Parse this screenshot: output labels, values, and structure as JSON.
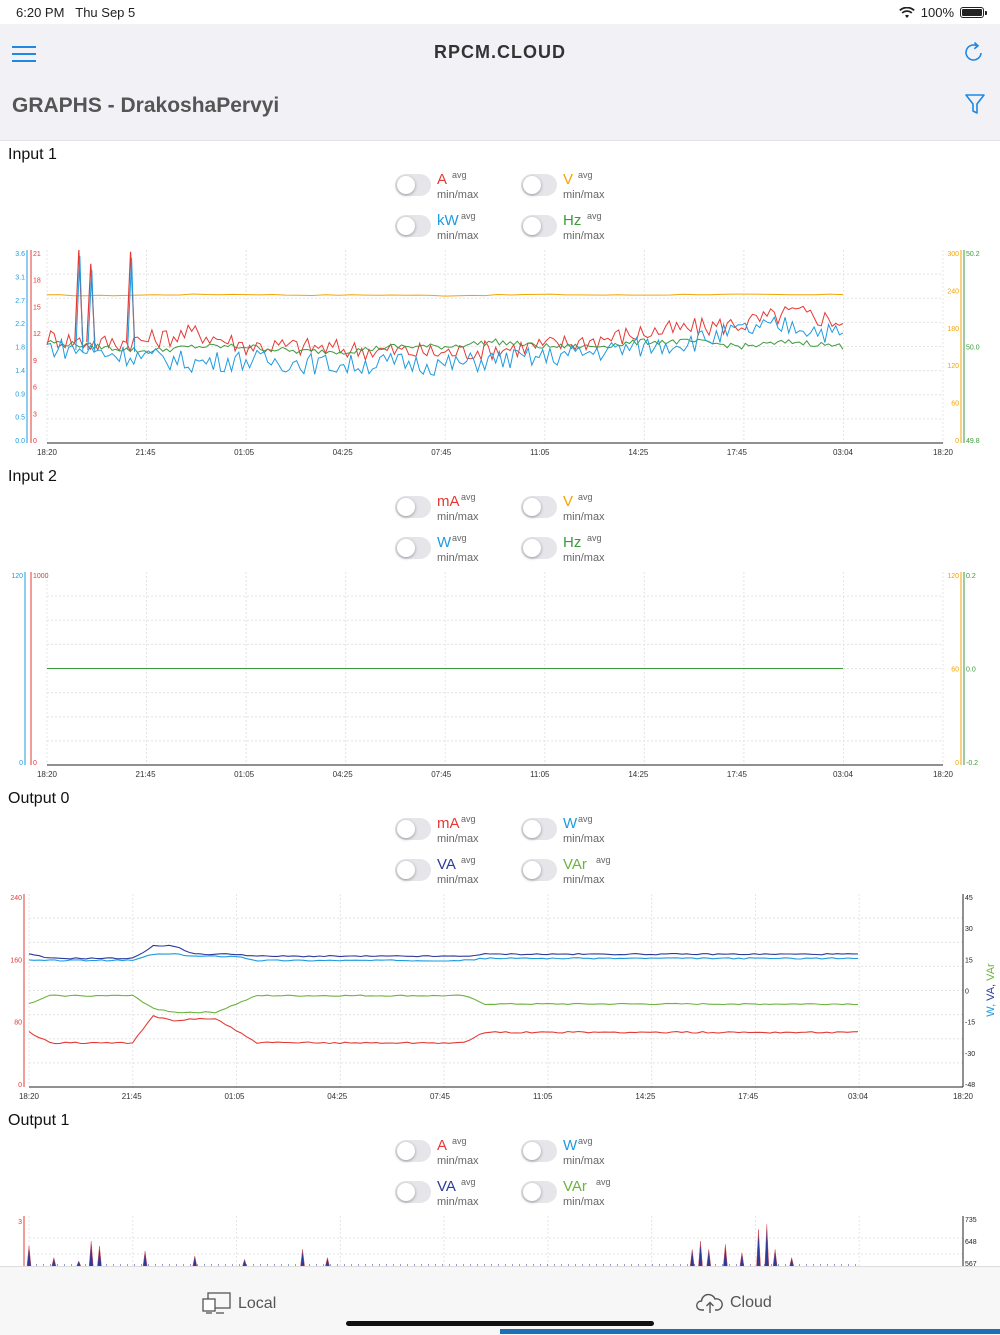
{
  "status": {
    "time": "6:20 PM",
    "date": "Thu Sep 5",
    "battery": "100%"
  },
  "header": {
    "brand": "RPCM.CLOUD",
    "title": "GRAPHS - DrakoshaPervyi"
  },
  "colors": {
    "red": "#e53935",
    "orange": "#f5a300",
    "blue": "#1e9be0",
    "green": "#3c9a3c",
    "navy": "#2b3b9c",
    "lime": "#6db33f"
  },
  "common": {
    "avg": "avg",
    "minmax": "min/max"
  },
  "sections": [
    {
      "title": "Input 1",
      "toggles": [
        {
          "label": "A"
        },
        {
          "label": "V"
        },
        {
          "label": "kW"
        },
        {
          "label": "Hz"
        }
      ]
    },
    {
      "title": "Input 2",
      "toggles": [
        {
          "label": "mA"
        },
        {
          "label": "V"
        },
        {
          "label": "W"
        },
        {
          "label": "Hz"
        }
      ]
    },
    {
      "title": "Output 0",
      "toggles": [
        {
          "label": "mA"
        },
        {
          "label": "W"
        },
        {
          "label": "VA"
        },
        {
          "label": "VAr"
        }
      ]
    },
    {
      "title": "Output 1",
      "toggles": [
        {
          "label": "A"
        },
        {
          "label": "W"
        },
        {
          "label": "VA"
        },
        {
          "label": "VAr"
        }
      ]
    }
  ],
  "chart_data": [
    {
      "type": "line",
      "title": "Input 1",
      "x_ticks": [
        "18:20",
        "21:45",
        "01:05",
        "04:25",
        "07:45",
        "11:05",
        "14:25",
        "17:45",
        "03:04",
        "18:20"
      ],
      "axes": [
        {
          "side": "left",
          "color": "#1e9be0",
          "ticks": [
            "3.6",
            "3.1",
            "2.7",
            "2.2",
            "1.8",
            "1.4",
            "0.9",
            "0.5",
            "0.0"
          ]
        },
        {
          "side": "left",
          "color": "#e53935",
          "ticks": [
            "21",
            "18",
            "15",
            "12",
            "9",
            "6",
            "3",
            "0"
          ]
        },
        {
          "side": "right",
          "color": "#f5a300",
          "ticks": [
            "300",
            "240",
            "180",
            "120",
            "60",
            "0"
          ]
        },
        {
          "side": "right",
          "color": "#3c9a3c",
          "ticks": [
            "50.2",
            "50.0",
            "49.8"
          ]
        }
      ],
      "series": [
        {
          "name": "V",
          "color": "#f5a300",
          "ylim": [
            0,
            300
          ],
          "values": [
            230,
            229,
            230,
            231,
            231,
            230,
            230,
            230,
            229,
            230,
            231,
            230,
            230,
            231,
            231,
            230,
            231
          ]
        },
        {
          "name": "A",
          "color": "#e53935",
          "ylim": [
            0,
            21
          ],
          "values": [
            11.5,
            10.8,
            11.2,
            12.0,
            10.6,
            10.5,
            10.2,
            10.0,
            9.8,
            10.2,
            10.6,
            11.2,
            12.0,
            12.5,
            13.0,
            14.2,
            13.2
          ]
        },
        {
          "name": "Hz",
          "color": "#3c9a3c",
          "ylim": [
            49.8,
            50.2
          ],
          "values": [
            50.01,
            50.0,
            49.99,
            50.0,
            50.0,
            49.99,
            49.99,
            50.0,
            50.0,
            50.01,
            50.0,
            50.0,
            50.01,
            50.01,
            50.0,
            50.01,
            50.0
          ]
        },
        {
          "name": "kW",
          "color": "#1e9be0",
          "ylim": [
            0,
            3.6
          ],
          "values": [
            1.8,
            1.7,
            1.6,
            1.5,
            1.55,
            1.5,
            1.45,
            1.5,
            1.45,
            1.55,
            1.6,
            1.7,
            1.8,
            1.9,
            2.1,
            2.2,
            2.0
          ]
        }
      ],
      "spikes": {
        "series": "A",
        "x_positions": [
          0.04,
          0.055,
          0.105
        ],
        "values": [
          21,
          19.5,
          20.8
        ]
      }
    },
    {
      "type": "line",
      "title": "Input 2",
      "x_ticks": [
        "18:20",
        "21:45",
        "01:05",
        "04:25",
        "07:45",
        "11:05",
        "14:25",
        "17:45",
        "03:04",
        "18:20"
      ],
      "axes": [
        {
          "side": "left",
          "color": "#1e9be0",
          "ticks": [
            "120",
            "0"
          ]
        },
        {
          "side": "left",
          "color": "#e53935",
          "ticks": [
            "1000",
            "0"
          ]
        },
        {
          "side": "right",
          "color": "#f5a300",
          "ticks": [
            "120",
            "60",
            "0"
          ]
        },
        {
          "side": "right",
          "color": "#3c9a3c",
          "ticks": [
            "0.2",
            "0.0",
            "-0.2"
          ]
        }
      ],
      "series": [
        {
          "name": "Hz",
          "color": "#3c9a3c",
          "ylim": [
            -0.2,
            0.2
          ],
          "values": [
            0.0,
            0.0
          ]
        }
      ]
    },
    {
      "type": "line",
      "title": "Output 0",
      "x_ticks": [
        "18:20",
        "21:45",
        "01:05",
        "04:25",
        "07:45",
        "11:05",
        "14:25",
        "17:45",
        "03:04",
        "18:20"
      ],
      "ylabel_right": "W, VA, VAr",
      "axes": [
        {
          "side": "left",
          "color": "#e53935",
          "ticks": [
            "240",
            "160",
            "80",
            "0"
          ]
        },
        {
          "side": "right",
          "color": "#222222",
          "ticks": [
            "45",
            "30",
            "15",
            "0",
            "-15",
            "-30",
            "-48"
          ]
        }
      ],
      "series": [
        {
          "name": "VA",
          "color": "#2b3b9c",
          "ylim": [
            -48,
            45
          ],
          "values": [
            16,
            14,
            14,
            14,
            14,
            14,
            20,
            20,
            16,
            16,
            16,
            15,
            15,
            15,
            15,
            15,
            15,
            15,
            15,
            15,
            15,
            15,
            16,
            16,
            16,
            16,
            16,
            16,
            16,
            16,
            16,
            16,
            16,
            16,
            16,
            16,
            16,
            16,
            16,
            16,
            16
          ]
        },
        {
          "name": "W",
          "color": "#1e9be0",
          "ylim": [
            -48,
            45
          ],
          "values": [
            13,
            13,
            13,
            13,
            13,
            13,
            16,
            16,
            15,
            15,
            15,
            13,
            13,
            13,
            13,
            13,
            13,
            13,
            13,
            13,
            13,
            13,
            14,
            14,
            14,
            14,
            14,
            14,
            14,
            14,
            14,
            14,
            14,
            14,
            14,
            14,
            14,
            14,
            14,
            14,
            14
          ]
        },
        {
          "name": "VAr",
          "color": "#6db33f",
          "ylim": [
            -48,
            45
          ],
          "values": [
            -8,
            -4,
            -4,
            -4,
            -4,
            -4,
            -10,
            -12,
            -12,
            -12,
            -8,
            -4,
            -4,
            -4,
            -4,
            -4,
            -4,
            -4,
            -4,
            -4,
            -4,
            -4,
            -8,
            -8,
            -8,
            -8,
            -8,
            -8,
            -8,
            -8,
            -8,
            -8,
            -8,
            -8,
            -8,
            -8,
            -8,
            -8,
            -8,
            -8,
            -8
          ]
        },
        {
          "name": "mA",
          "color": "#e53935",
          "ylim": [
            0,
            240
          ],
          "values": [
            68,
            55,
            55,
            55,
            55,
            55,
            88,
            82,
            85,
            85,
            70,
            55,
            55,
            55,
            55,
            55,
            55,
            55,
            55,
            55,
            55,
            55,
            68,
            68,
            68,
            68,
            68,
            68,
            68,
            68,
            68,
            68,
            68,
            68,
            68,
            68,
            68,
            68,
            68,
            68,
            68
          ]
        }
      ]
    },
    {
      "type": "line",
      "title": "Output 1",
      "axes": [
        {
          "side": "left",
          "color": "#e53935",
          "ticks": [
            "3"
          ]
        },
        {
          "side": "right",
          "color": "#222222",
          "ticks": [
            "735",
            "648",
            "567"
          ]
        }
      ],
      "series": [
        {
          "name": "VA",
          "color": "#2b3b9c",
          "spikes": [
            0.0,
            0.03,
            0.06,
            0.075,
            0.085,
            0.14,
            0.2,
            0.26,
            0.33,
            0.36,
            0.8,
            0.81,
            0.82,
            0.84,
            0.86,
            0.88,
            0.89,
            0.9,
            0.92
          ],
          "values": [
            1.2,
            0.5,
            0.3,
            1.5,
            1.2,
            0.9,
            0.6,
            0.4,
            1.0,
            0.5,
            1.0,
            1.5,
            1.0,
            1.3,
            0.8,
            2.2,
            2.5,
            1.0,
            0.5
          ]
        }
      ]
    }
  ],
  "bottom_tabs": {
    "local": "Local",
    "cloud": "Cloud"
  }
}
